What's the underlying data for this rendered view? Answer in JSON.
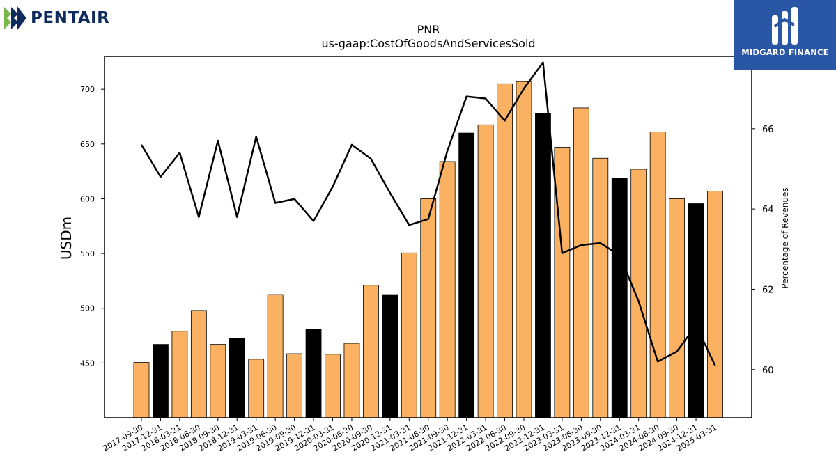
{
  "brand": {
    "company": "PENTAIR",
    "publisher": "MIDGARD FINANCE"
  },
  "colors": {
    "bar_default": "#fbb162",
    "bar_highlight": "#000000",
    "line": "#000000",
    "logo_bg": "#2a56a6",
    "pentair_navy": "#0d2b5c",
    "pentair_green": "#7ab648"
  },
  "chart_data": {
    "type": "bar",
    "title": "PNR",
    "subtitle": "us-gaap:CostOfGoodsAndServicesSold",
    "ylabel": "USDm",
    "y2label": "Percentage of Revenues",
    "ylim": [
      400,
      730
    ],
    "y2lim": [
      58.8,
      67.8
    ],
    "yticks": [
      450,
      500,
      550,
      600,
      650,
      700
    ],
    "y2ticks": [
      60,
      62,
      64,
      66
    ],
    "categories": [
      "2017-09-30",
      "2017-12-31",
      "2018-03-31",
      "2018-06-30",
      "2018-09-30",
      "2018-12-31",
      "2019-03-31",
      "2019-06-30",
      "2019-09-30",
      "2019-12-31",
      "2020-03-31",
      "2020-06-30",
      "2020-09-30",
      "2020-12-31",
      "2021-03-31",
      "2021-06-30",
      "2021-09-30",
      "2021-12-31",
      "2022-03-31",
      "2022-06-30",
      "2022-09-30",
      "2022-12-31",
      "2023-03-31",
      "2023-06-30",
      "2023-09-30",
      "2023-12-31",
      "2024-03-31",
      "2024-06-30",
      "2024-09-30",
      "2024-12-31",
      "2025-03-31"
    ],
    "series": [
      {
        "type": "bar",
        "values": [
          450.5,
          467,
          479,
          498,
          467,
          472.5,
          453.5,
          512.5,
          458.5,
          481,
          458,
          468,
          521,
          512.5,
          550.5,
          600,
          634,
          660,
          667.5,
          705,
          707,
          678,
          647,
          683,
          637,
          619,
          627,
          661,
          600,
          595.5,
          607
        ]
      },
      {
        "type": "line",
        "axis": "right",
        "values": [
          65.6,
          64.8,
          65.4,
          63.8,
          65.7,
          63.8,
          65.8,
          64.15,
          64.25,
          63.7,
          64.55,
          65.6,
          65.25,
          64.4,
          63.6,
          63.75,
          65.45,
          66.8,
          66.75,
          66.2,
          67.0,
          67.65,
          62.9,
          63.1,
          63.15,
          62.85,
          61.7,
          60.2,
          60.45,
          61.1,
          60.1
        ]
      }
    ],
    "highlight_every": 4,
    "highlight_offset": 1
  }
}
